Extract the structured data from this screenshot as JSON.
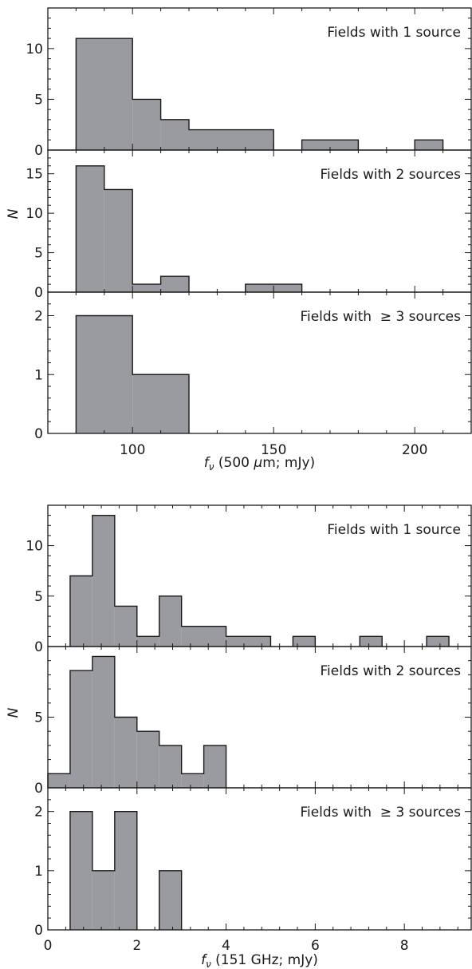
{
  "chart_data": [
    {
      "type": "histogram",
      "xlabel_var": "f",
      "xlabel_sub": "ν",
      "xlabel_rest": " (500 ",
      "xlabel_unit_greek": "μ",
      "xlabel_tail": "m; mJy)",
      "ylabel": "N",
      "xlim": [
        70,
        220
      ],
      "xticks": [
        100,
        150,
        200
      ],
      "panels": [
        {
          "label": "Fields with 1 source",
          "ylim": [
            0,
            14
          ],
          "yticks": [
            0,
            5,
            10
          ],
          "bins": [
            [
              80,
              100,
              11
            ],
            [
              100,
              110,
              5
            ],
            [
              110,
              120,
              3
            ],
            [
              120,
              150,
              2
            ],
            [
              160,
              180,
              1
            ],
            [
              200,
              210,
              1
            ]
          ]
        },
        {
          "label": "Fields with 2 sources",
          "ylim": [
            0,
            18
          ],
          "yticks": [
            0,
            5,
            10,
            15
          ],
          "bins": [
            [
              80,
              90,
              16
            ],
            [
              90,
              100,
              13
            ],
            [
              100,
              110,
              1
            ],
            [
              110,
              120,
              2
            ],
            [
              140,
              160,
              1
            ]
          ]
        },
        {
          "label": "Fields with  ≥ 3 sources",
          "ylim": [
            0,
            2.4
          ],
          "yticks": [
            0,
            1,
            2
          ],
          "bins": [
            [
              80,
              100,
              2
            ],
            [
              100,
              120,
              1
            ]
          ]
        }
      ]
    },
    {
      "type": "histogram",
      "xlabel_var": "f",
      "xlabel_sub": "ν",
      "xlabel_rest": " (151 GHz; mJy)",
      "ylabel": "N",
      "xlim": [
        0,
        9.5
      ],
      "xticks": [
        0,
        2,
        4,
        6,
        8
      ],
      "panels": [
        {
          "label": "Fields with 1 source",
          "ylim": [
            0,
            14
          ],
          "yticks": [
            0,
            5,
            10
          ],
          "bins": [
            [
              0.5,
              1.0,
              7
            ],
            [
              1.0,
              1.5,
              13
            ],
            [
              1.5,
              2.0,
              4
            ],
            [
              2.0,
              2.5,
              1
            ],
            [
              2.5,
              3.0,
              5
            ],
            [
              3.0,
              4.0,
              2
            ],
            [
              4.0,
              5.0,
              1
            ],
            [
              5.5,
              6.0,
              1
            ],
            [
              7.0,
              7.5,
              1
            ],
            [
              8.5,
              9.0,
              1
            ]
          ]
        },
        {
          "label": "Fields with 2 sources",
          "ylim": [
            0,
            10
          ],
          "yticks": [
            0,
            5
          ],
          "bins": [
            [
              0.0,
              0.5,
              1
            ],
            [
              0.5,
              1.0,
              8.3
            ],
            [
              1.0,
              1.5,
              9.3
            ],
            [
              1.5,
              2.0,
              5
            ],
            [
              2.0,
              2.5,
              4
            ],
            [
              2.5,
              3.0,
              3
            ],
            [
              3.0,
              3.5,
              1
            ],
            [
              3.5,
              4.0,
              3
            ]
          ]
        },
        {
          "label": "Fields with  ≥ 3 sources",
          "ylim": [
            0,
            2.4
          ],
          "yticks": [
            0,
            1,
            2
          ],
          "bins": [
            [
              0.5,
              1.0,
              2
            ],
            [
              1.0,
              1.5,
              1
            ],
            [
              1.5,
              2.0,
              2
            ],
            [
              2.5,
              3.0,
              1
            ]
          ]
        }
      ]
    }
  ]
}
